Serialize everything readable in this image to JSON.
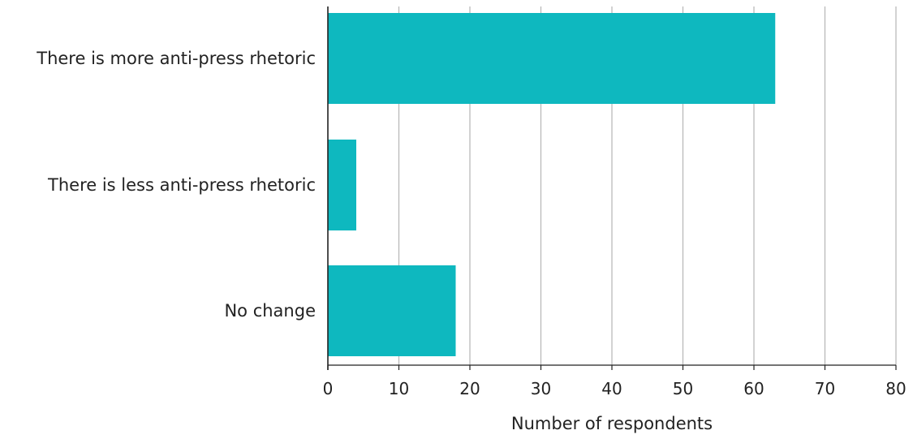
{
  "chart_data": {
    "type": "bar",
    "orientation": "horizontal",
    "categories": [
      "There is more anti-press rhetoric",
      "There is less anti-press rhetoric",
      "No change"
    ],
    "values": [
      63,
      4,
      18
    ],
    "xlabel": "Number of respondents",
    "ylabel": "",
    "xlim": [
      0,
      80
    ],
    "xticks": [
      0,
      10,
      20,
      30,
      40,
      50,
      60,
      70,
      80
    ],
    "tick_labels": [
      "0",
      "10",
      "20",
      "30",
      "40",
      "50",
      "60",
      "70",
      "80"
    ],
    "grid": "vertical",
    "legend": "none",
    "colors": {
      "bar": "#0eb8bf",
      "grid": "#b5b5b5",
      "axis": "#222222"
    }
  }
}
